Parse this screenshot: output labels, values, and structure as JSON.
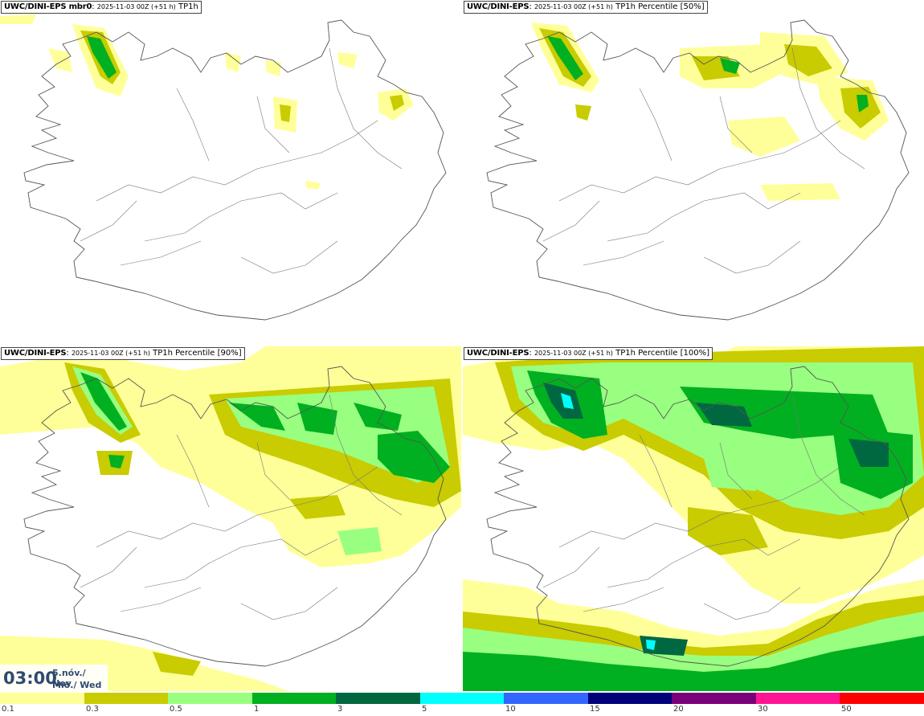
{
  "panels": [
    {
      "model": "UWC/DINI-EPS",
      "member": "mbr0",
      "run": "2025-11-03 00Z (+51 h)",
      "param": "TP1h"
    },
    {
      "model": "UWC/DINI-EPS",
      "member": "",
      "run": "2025-11-03 00Z (+51 h)",
      "param": "TP1h Percentile [50%]"
    },
    {
      "model": "UWC/DINI-EPS",
      "member": "",
      "run": "2025-11-03 00Z (+51 h)",
      "param": "TP1h Percentile [90%]"
    },
    {
      "model": "UWC/DINI-EPS",
      "member": "",
      "run": "2025-11-03 00Z (+51 h)",
      "param": "TP1h Percentile [100%]"
    }
  ],
  "valid_time": {
    "time": "03:00",
    "date": "5.nóv./ Nov",
    "weekday": "Mið./ Wed"
  },
  "legend": {
    "ticks": [
      "0.1",
      "0.3",
      "0.5",
      "1",
      "3",
      "5",
      "10",
      "15",
      "20",
      "30",
      "50"
    ],
    "colors": [
      "#ffff99",
      "#c8cc00",
      "#99ff80",
      "#00b020",
      "#006840",
      "#00ffff",
      "#3366ff",
      "#00007a",
      "#7a007a",
      "#ff1493",
      "#ff0000"
    ]
  }
}
